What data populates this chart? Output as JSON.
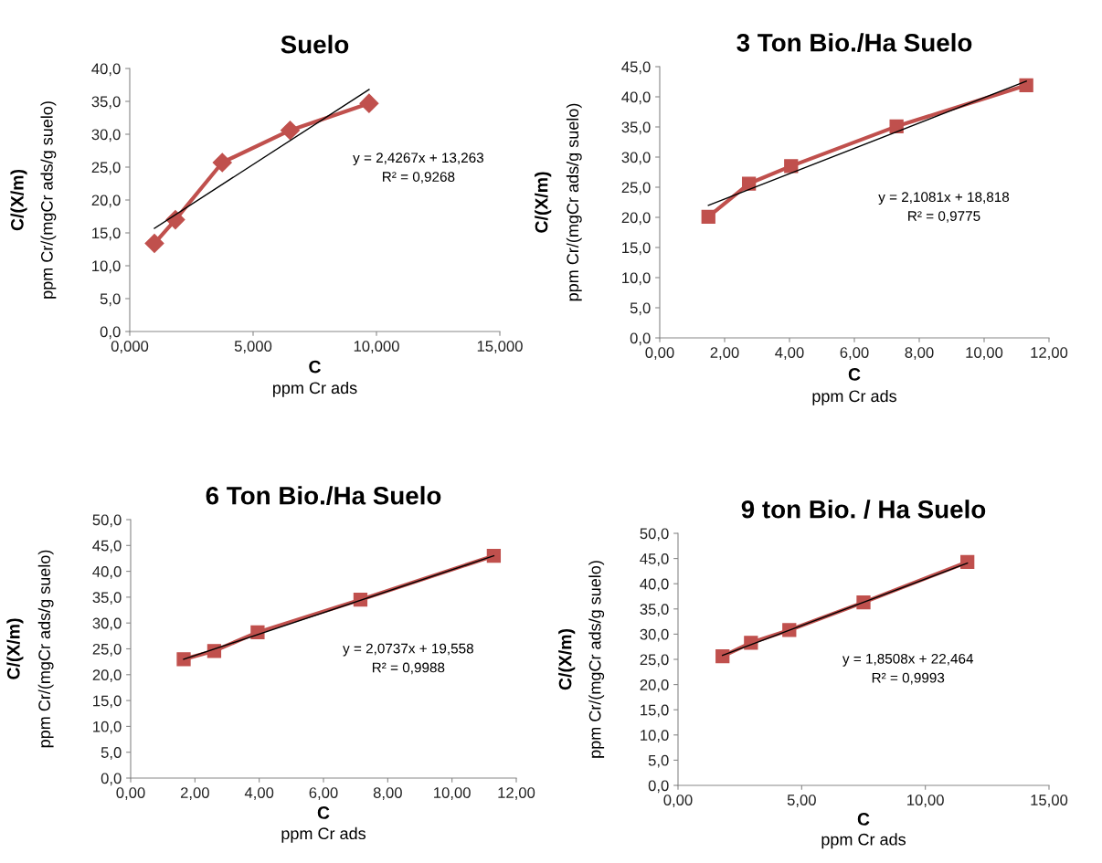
{
  "chart_data": [
    {
      "type": "line",
      "title": "Suelo",
      "xlabel": "C\nppm Cr ads",
      "ylabel": "C/(X/m)\nppm Cr/(mgCr ads/g suelo)",
      "grid": false,
      "legend": false,
      "xlim": [
        0,
        15
      ],
      "xticks": [
        {
          "value": 0,
          "label": "0,000"
        },
        {
          "value": 5,
          "label": "5,000"
        },
        {
          "value": 10,
          "label": "10,000"
        },
        {
          "value": 15,
          "label": "15,000"
        }
      ],
      "ylim": [
        0,
        40
      ],
      "yticks": [
        {
          "value": 0,
          "label": "0,0"
        },
        {
          "value": 5,
          "label": "5,0"
        },
        {
          "value": 10,
          "label": "10,0"
        },
        {
          "value": 15,
          "label": "15,0"
        },
        {
          "value": 20,
          "label": "20,0"
        },
        {
          "value": 25,
          "label": "25,0"
        },
        {
          "value": 30,
          "label": "30,0"
        },
        {
          "value": 35,
          "label": "35,0"
        },
        {
          "value": 40,
          "label": "40,0"
        }
      ],
      "series": [
        {
          "color": "#c0504d",
          "marker": "diamond",
          "x": [
            1.0,
            1.85,
            3.75,
            6.5,
            9.7
          ],
          "values": [
            13.4,
            17.0,
            25.7,
            30.6,
            34.7
          ]
        },
        {
          "color": "#000000",
          "marker": "none",
          "x": [
            1.0,
            9.7
          ],
          "values": [
            15.7,
            36.8
          ]
        }
      ],
      "annotations": [
        "y = 2,4267x + 13,263\nR² = 0,9268"
      ]
    },
    {
      "type": "line",
      "title": "3 Ton Bio./Ha Suelo",
      "xlabel": "C\nppm Cr ads",
      "ylabel": "C/(X/m)\nppm Cr/(mgCr ads/g suelo)",
      "grid": false,
      "legend": false,
      "xlim": [
        0,
        12
      ],
      "xticks": [
        {
          "value": 0,
          "label": "0,00"
        },
        {
          "value": 2,
          "label": "2,00"
        },
        {
          "value": 4,
          "label": "4,00"
        },
        {
          "value": 6,
          "label": "6,00"
        },
        {
          "value": 8,
          "label": "8,00"
        },
        {
          "value": 10,
          "label": "10,00"
        },
        {
          "value": 12,
          "label": "12,00"
        }
      ],
      "ylim": [
        0,
        45
      ],
      "yticks": [
        {
          "value": 0,
          "label": "0,0"
        },
        {
          "value": 5,
          "label": "5,0"
        },
        {
          "value": 10,
          "label": "10,0"
        },
        {
          "value": 15,
          "label": "15,0"
        },
        {
          "value": 20,
          "label": "20,0"
        },
        {
          "value": 25,
          "label": "25,0"
        },
        {
          "value": 30,
          "label": "30,0"
        },
        {
          "value": 35,
          "label": "35,0"
        },
        {
          "value": 40,
          "label": "40,0"
        },
        {
          "value": 45,
          "label": "45,0"
        }
      ],
      "series": [
        {
          "color": "#c0504d",
          "marker": "square",
          "x": [
            1.5,
            2.75,
            4.05,
            7.3,
            11.3
          ],
          "values": [
            20.1,
            25.6,
            28.5,
            35.1,
            41.9
          ]
        },
        {
          "color": "#000000",
          "marker": "none",
          "x": [
            1.5,
            11.3
          ],
          "values": [
            22.0,
            42.6
          ]
        }
      ],
      "annotations": [
        "y = 2,1081x + 18,818\nR² = 0,9775"
      ]
    },
    {
      "type": "line",
      "title": "6 Ton Bio./Ha Suelo",
      "xlabel": "C\nppm Cr ads",
      "ylabel": "C/(X/m)\nppm Cr/(mgCr ads/g suelo)",
      "grid": false,
      "legend": false,
      "xlim": [
        0,
        12
      ],
      "xticks": [
        {
          "value": 0,
          "label": "0,00"
        },
        {
          "value": 2,
          "label": "2,00"
        },
        {
          "value": 4,
          "label": "4,00"
        },
        {
          "value": 6,
          "label": "6,00"
        },
        {
          "value": 8,
          "label": "8,00"
        },
        {
          "value": 10,
          "label": "10,00"
        },
        {
          "value": 12,
          "label": "12,00"
        }
      ],
      "ylim": [
        0,
        50
      ],
      "yticks": [
        {
          "value": 0,
          "label": "0,0"
        },
        {
          "value": 5,
          "label": "5,0"
        },
        {
          "value": 10,
          "label": "10,0"
        },
        {
          "value": 15,
          "label": "15,0"
        },
        {
          "value": 20,
          "label": "20,0"
        },
        {
          "value": 25,
          "label": "25,0"
        },
        {
          "value": 30,
          "label": "30,0"
        },
        {
          "value": 35,
          "label": "35,0"
        },
        {
          "value": 40,
          "label": "40,0"
        },
        {
          "value": 45,
          "label": "45,0"
        },
        {
          "value": 50,
          "label": "50,0"
        }
      ],
      "series": [
        {
          "color": "#c0504d",
          "marker": "square",
          "x": [
            1.65,
            2.6,
            3.95,
            7.15,
            11.3
          ],
          "values": [
            23.0,
            24.6,
            28.2,
            34.5,
            43.0
          ]
        },
        {
          "color": "#000000",
          "marker": "none",
          "x": [
            1.65,
            11.3
          ],
          "values": [
            23.0,
            43.0
          ]
        }
      ],
      "annotations": [
        "y = 2,0737x + 19,558\nR² = 0,9988"
      ]
    },
    {
      "type": "line",
      "title": "9 ton Bio. / Ha Suelo",
      "xlabel": "C\nppm Cr ads",
      "ylabel": "C/(X/m)\nppm Cr/(mgCr ads/g suelo)",
      "grid": false,
      "legend": false,
      "xlim": [
        0,
        15
      ],
      "xticks": [
        {
          "value": 0,
          "label": "0,00"
        },
        {
          "value": 5,
          "label": "5,00"
        },
        {
          "value": 10,
          "label": "10,00"
        },
        {
          "value": 15,
          "label": "15,00"
        }
      ],
      "ylim": [
        0,
        50
      ],
      "yticks": [
        {
          "value": 0,
          "label": "0,0"
        },
        {
          "value": 5,
          "label": "5,0"
        },
        {
          "value": 10,
          "label": "10,0"
        },
        {
          "value": 15,
          "label": "15,0"
        },
        {
          "value": 20,
          "label": "20,0"
        },
        {
          "value": 25,
          "label": "25,0"
        },
        {
          "value": 30,
          "label": "30,0"
        },
        {
          "value": 35,
          "label": "35,0"
        },
        {
          "value": 40,
          "label": "40,0"
        },
        {
          "value": 45,
          "label": "45,0"
        },
        {
          "value": 50,
          "label": "50,0"
        }
      ],
      "series": [
        {
          "color": "#c0504d",
          "marker": "square",
          "x": [
            1.8,
            2.95,
            4.5,
            7.5,
            11.7
          ],
          "values": [
            25.6,
            28.3,
            30.8,
            36.3,
            44.3
          ]
        },
        {
          "color": "#000000",
          "marker": "none",
          "x": [
            1.8,
            11.7
          ],
          "values": [
            25.8,
            44.1
          ]
        }
      ],
      "annotations": [
        "y = 1,8508x + 22,464\nR² = 0,9993"
      ]
    }
  ]
}
